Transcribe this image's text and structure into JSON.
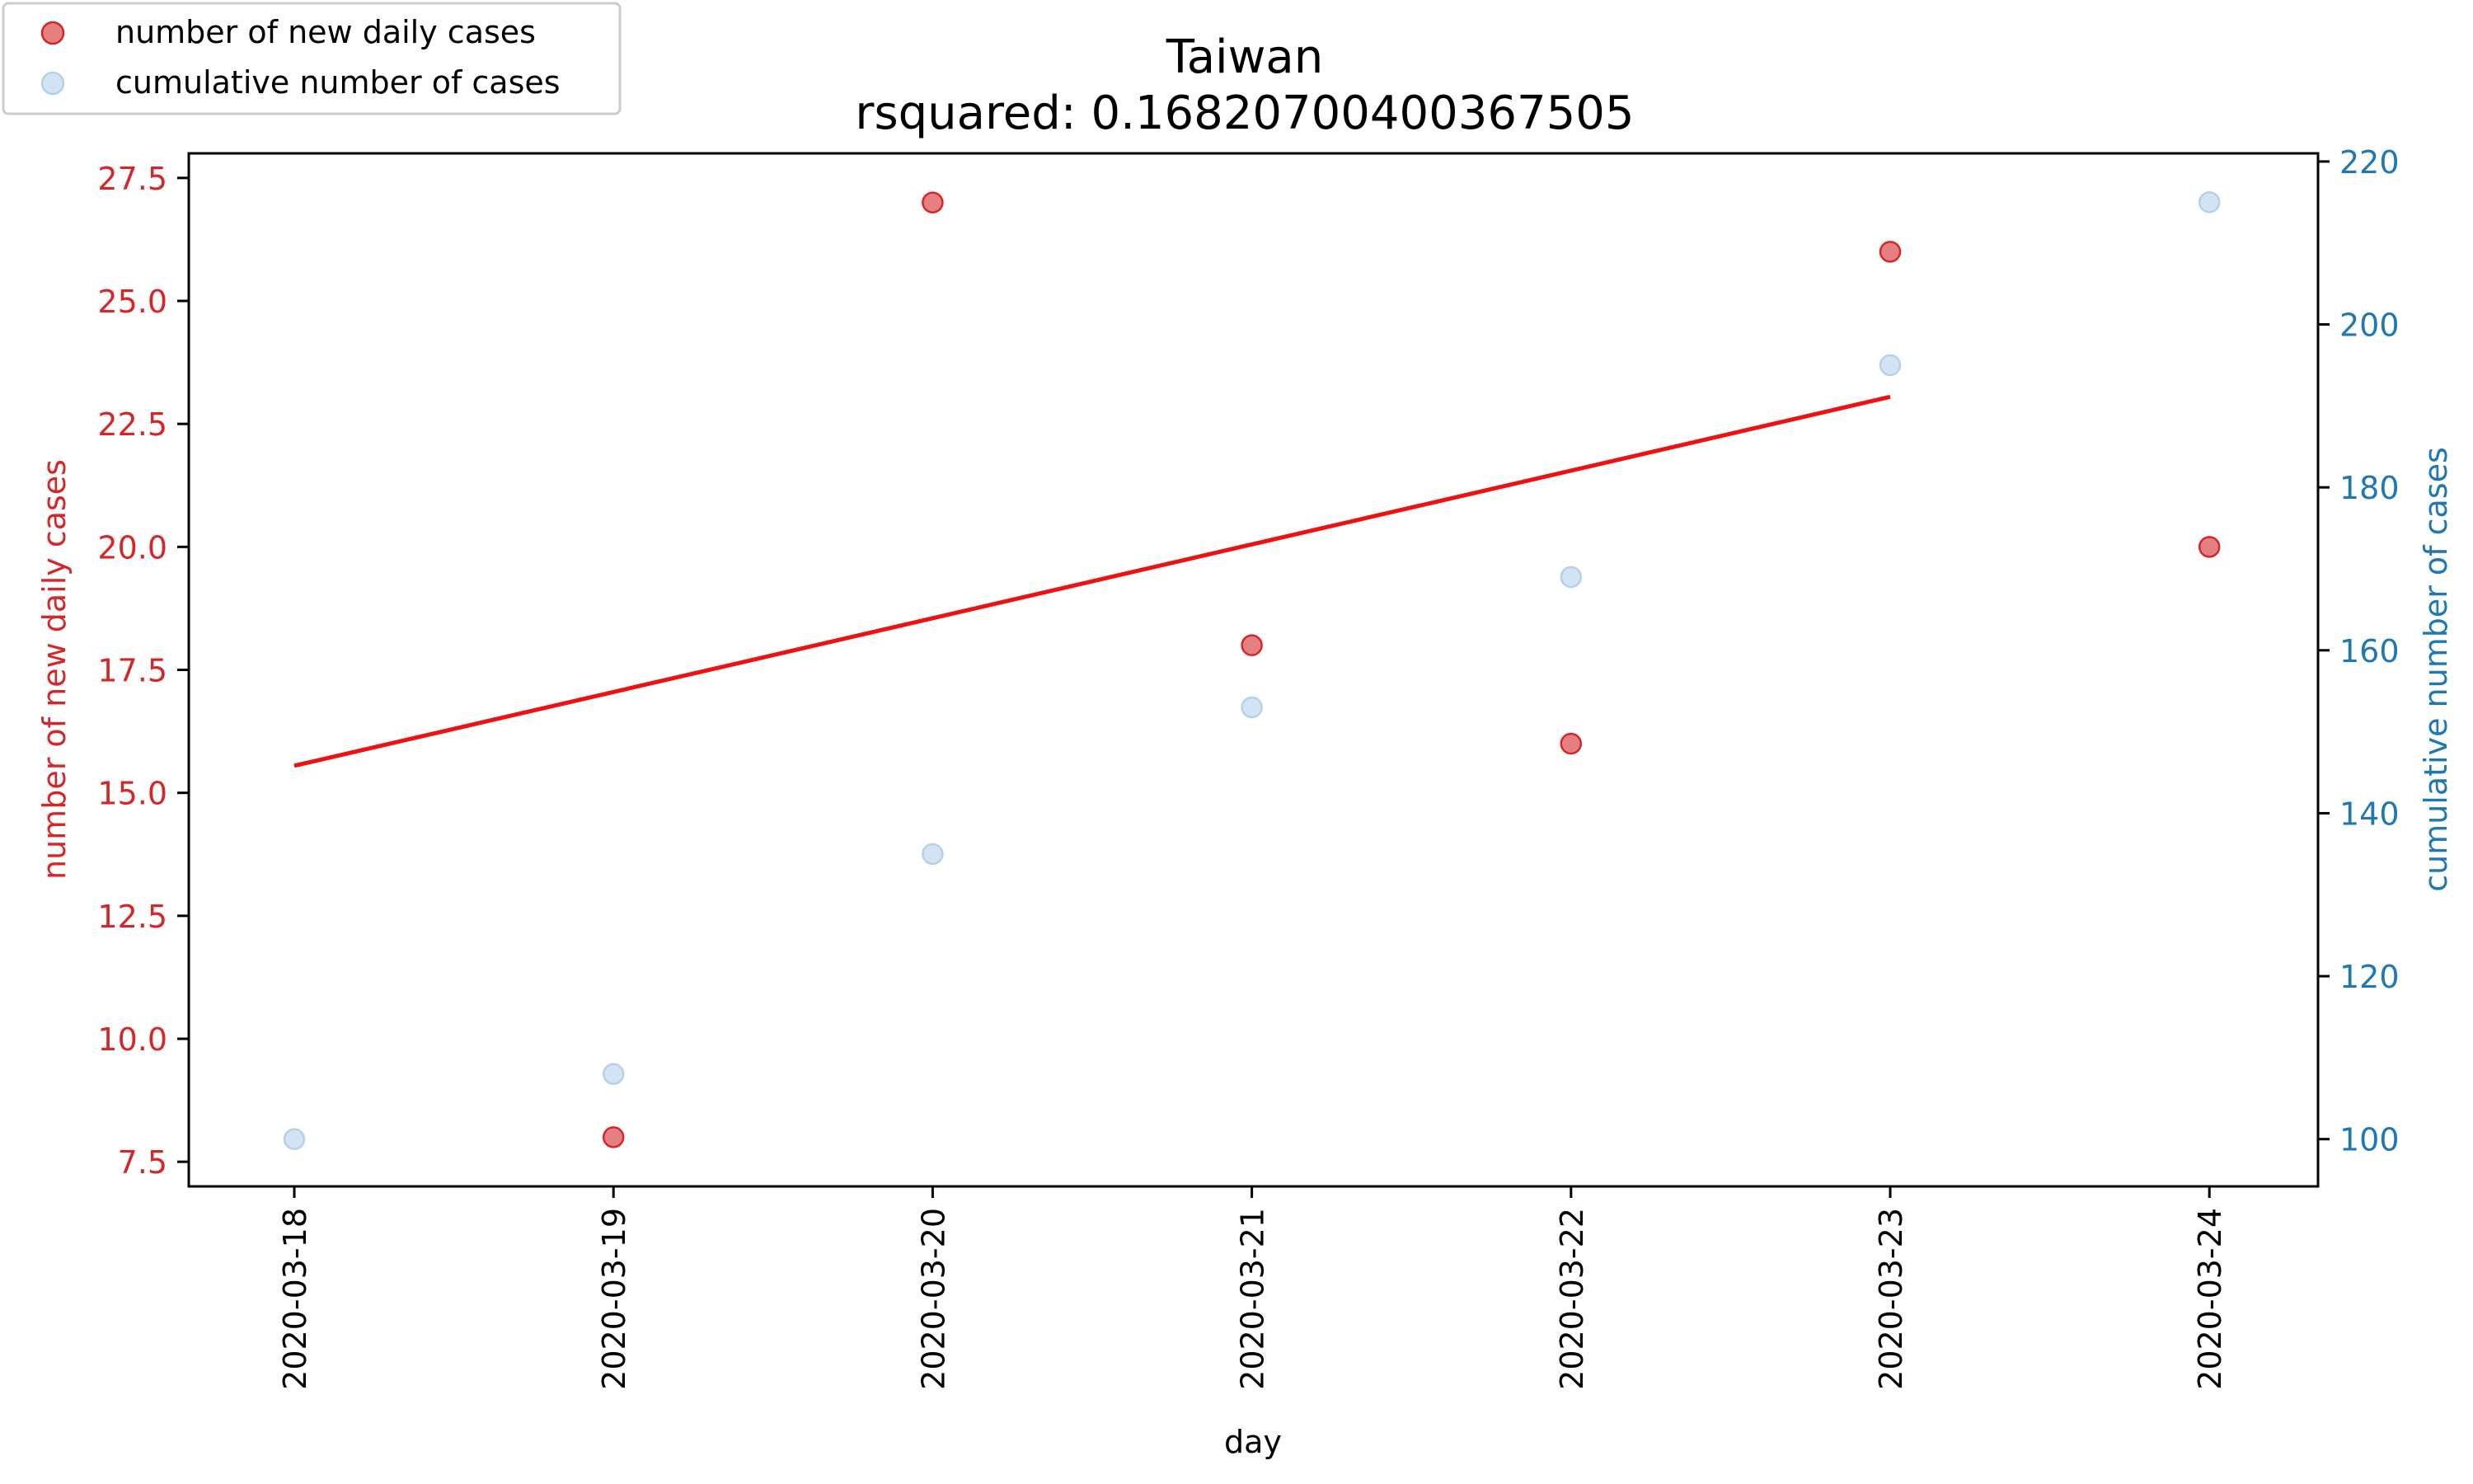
{
  "chart_data": {
    "type": "scatter",
    "title": "Taiwan",
    "subtitle": "rsquared: 0.16820700400367505",
    "xlabel": "day",
    "ylabel_left": "number of new daily cases",
    "ylabel_right": "cumulative number of cases",
    "categories": [
      "2020-03-18",
      "2020-03-19",
      "2020-03-20",
      "2020-03-21",
      "2020-03-22",
      "2020-03-23",
      "2020-03-24"
    ],
    "ylim_left": [
      7.0,
      28.0
    ],
    "ylim_right": [
      94.2,
      221.0
    ],
    "yticks_left": [
      "7.5",
      "10.0",
      "12.5",
      "15.0",
      "17.5",
      "20.0",
      "22.5",
      "25.0",
      "27.5"
    ],
    "yticks_right": [
      "100",
      "120",
      "140",
      "160",
      "180",
      "200",
      "220"
    ],
    "series": [
      {
        "name": "number of new daily cases",
        "axis": "left",
        "color": "#d62728",
        "values": [
          null,
          8,
          27,
          18,
          16,
          26,
          20
        ]
      },
      {
        "name": "cumulative number of cases",
        "axis": "right",
        "color": "#a6c8e6",
        "values": [
          100,
          108,
          135,
          153,
          169,
          195,
          215
        ]
      }
    ],
    "trend_line": {
      "axis": "left",
      "color": "#ee1111",
      "start": [
        "2020-03-18",
        15.55
      ],
      "end": [
        "2020-03-23",
        23.05
      ]
    },
    "legend_position": "top-left",
    "grid": false
  },
  "colors": {
    "left_axis": "#d62728",
    "right_axis": "#1f77b4",
    "trend": "#ee1111"
  }
}
